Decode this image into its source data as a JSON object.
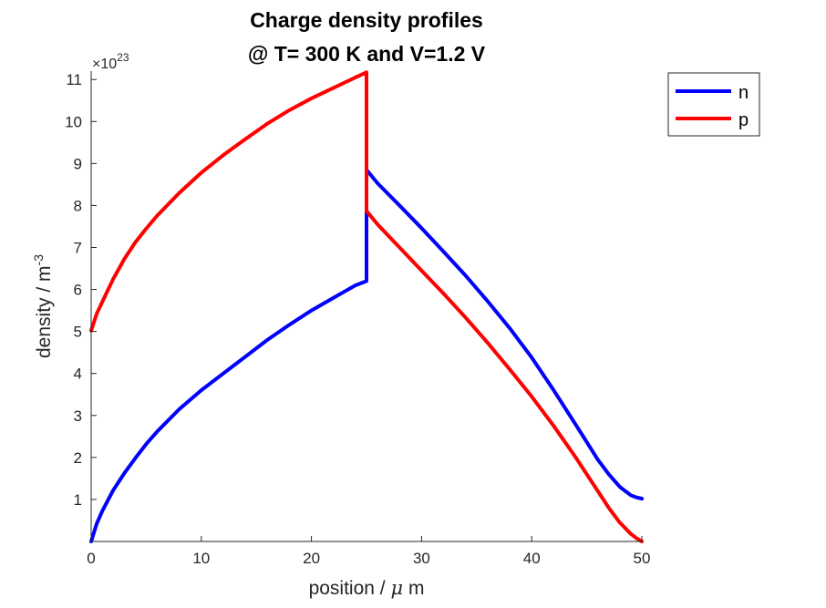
{
  "chart_data": {
    "type": "line",
    "title": [
      "Charge density profiles",
      "@ T= 300 K and V=1.2 V"
    ],
    "xlabel": {
      "text": "position / ",
      "symbol": "μ",
      "suffix": " m"
    },
    "ylabel": {
      "text": "density / m",
      "sup": "-3"
    },
    "y_multiplier": {
      "prefix": "×10",
      "exponent": "23"
    },
    "xlim": [
      0,
      50
    ],
    "ylim": [
      0,
      11.2
    ],
    "x_ticks": [
      0,
      10,
      20,
      30,
      40,
      50
    ],
    "x_tick_labels": [
      "0",
      "10",
      "20",
      "30",
      "40",
      "50"
    ],
    "y_ticks": [
      1,
      2,
      3,
      4,
      5,
      6,
      7,
      8,
      9,
      10,
      11
    ],
    "y_tick_labels": [
      "1",
      "2",
      "3",
      "4",
      "5",
      "6",
      "7",
      "8",
      "9",
      "10",
      "11"
    ],
    "grid": false,
    "legend_position": "top-right outside",
    "series": [
      {
        "name": "n",
        "color": "#0000ff",
        "x": [
          0,
          0.5,
          1,
          2,
          3,
          4,
          5,
          6,
          8,
          10,
          12,
          14,
          16,
          18,
          20,
          22,
          24,
          25,
          25,
          26,
          28,
          30,
          32,
          34,
          36,
          38,
          40,
          42,
          44,
          46,
          47,
          48,
          49,
          49.5,
          50
        ],
        "y": [
          0,
          0.42,
          0.72,
          1.22,
          1.62,
          1.98,
          2.32,
          2.62,
          3.15,
          3.6,
          4.0,
          4.4,
          4.8,
          5.16,
          5.5,
          5.8,
          6.1,
          6.2,
          8.85,
          8.53,
          8.0,
          7.46,
          6.9,
          6.33,
          5.72,
          5.08,
          4.38,
          3.6,
          2.78,
          1.95,
          1.6,
          1.3,
          1.1,
          1.05,
          1.02
        ]
      },
      {
        "name": "p",
        "color": "#ff0000",
        "x": [
          0,
          0.5,
          1,
          2,
          3,
          4,
          5,
          6,
          8,
          10,
          12,
          14,
          16,
          18,
          20,
          22,
          24,
          25,
          25,
          26,
          28,
          30,
          32,
          34,
          36,
          38,
          40,
          42,
          44,
          46,
          47,
          48,
          49,
          49.5,
          50
        ],
        "y": [
          5.02,
          5.42,
          5.7,
          6.25,
          6.72,
          7.12,
          7.45,
          7.76,
          8.3,
          8.78,
          9.2,
          9.58,
          9.95,
          10.27,
          10.55,
          10.8,
          11.05,
          11.17,
          7.87,
          7.55,
          7.0,
          6.45,
          5.9,
          5.33,
          4.73,
          4.1,
          3.45,
          2.75,
          2.0,
          1.2,
          0.8,
          0.45,
          0.18,
          0.08,
          0.0
        ]
      }
    ]
  }
}
